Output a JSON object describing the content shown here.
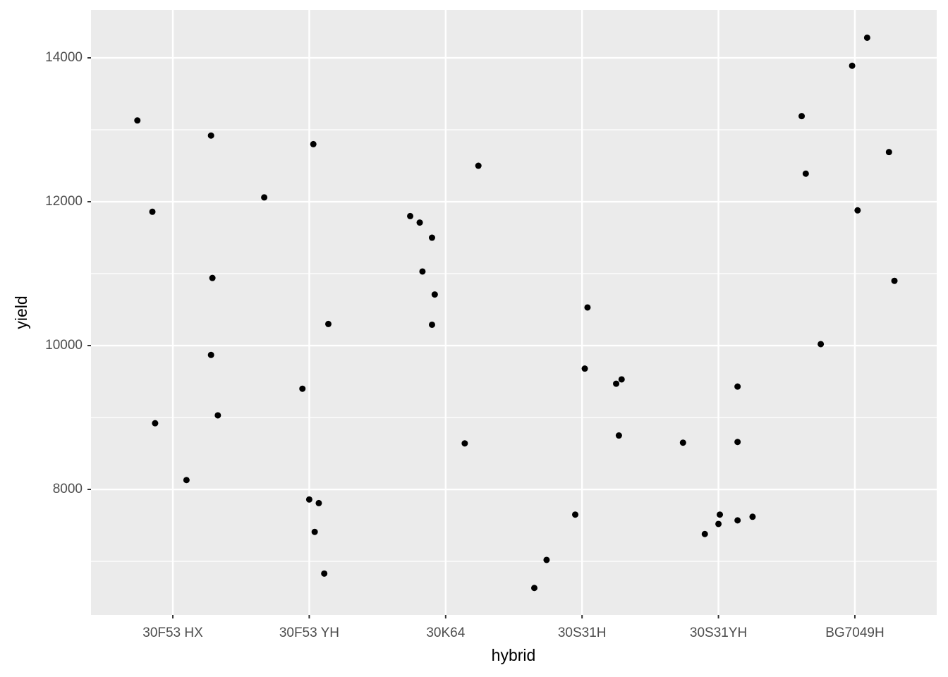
{
  "chart_data": {
    "type": "scatter",
    "x_label": "hybrid",
    "y_label": "yield",
    "xlim": [
      0.4,
      6.6
    ],
    "xticks": [
      {
        "value": 1,
        "label": "30F53 HX"
      },
      {
        "value": 2,
        "label": "30F53 YH"
      },
      {
        "value": 3,
        "label": "30K64"
      },
      {
        "value": 4,
        "label": "30S31H"
      },
      {
        "value": 5,
        "label": "30S31YH"
      },
      {
        "value": 6,
        "label": "BG7049H"
      }
    ],
    "ylim": [
      6255,
      14667
    ],
    "yticks": [
      8000,
      10000,
      12000,
      14000
    ],
    "y_minor_ticks": [
      7000,
      9000,
      11000,
      13000
    ],
    "grid": true,
    "panel_color": "#ebebeb",
    "series": [
      {
        "color": "#000000",
        "x": [
          0.74,
          0.85,
          0.87,
          1.1,
          1.28,
          1.29,
          1.28,
          1.33,
          1.67,
          2.03,
          2.14,
          1.95,
          2.0,
          2.07,
          2.04,
          2.11,
          2.74,
          2.81,
          2.9,
          2.83,
          2.92,
          2.9,
          3.24,
          3.14,
          3.65,
          3.74,
          3.95,
          4.04,
          4.02,
          4.25,
          4.29,
          4.27,
          4.74,
          4.9,
          5.0,
          5.01,
          5.14,
          5.25,
          5.14,
          5.14,
          5.61,
          5.64,
          5.75,
          5.98,
          6.09,
          6.02,
          6.25,
          6.29
        ],
        "values": [
          13130,
          11860,
          8920,
          8130,
          12920,
          10940,
          9870,
          9030,
          12060,
          12800,
          10300,
          9400,
          7860,
          7810,
          7410,
          6830,
          11800,
          11710,
          11500,
          11030,
          10710,
          10290,
          12500,
          8640,
          6630,
          7020,
          7650,
          10530,
          9680,
          9470,
          9530,
          8750,
          8650,
          7380,
          7520,
          7650,
          7570,
          7620,
          9430,
          8660,
          13190,
          12390,
          10020,
          13890,
          14280,
          11880,
          12690,
          10900
        ]
      }
    ]
  }
}
